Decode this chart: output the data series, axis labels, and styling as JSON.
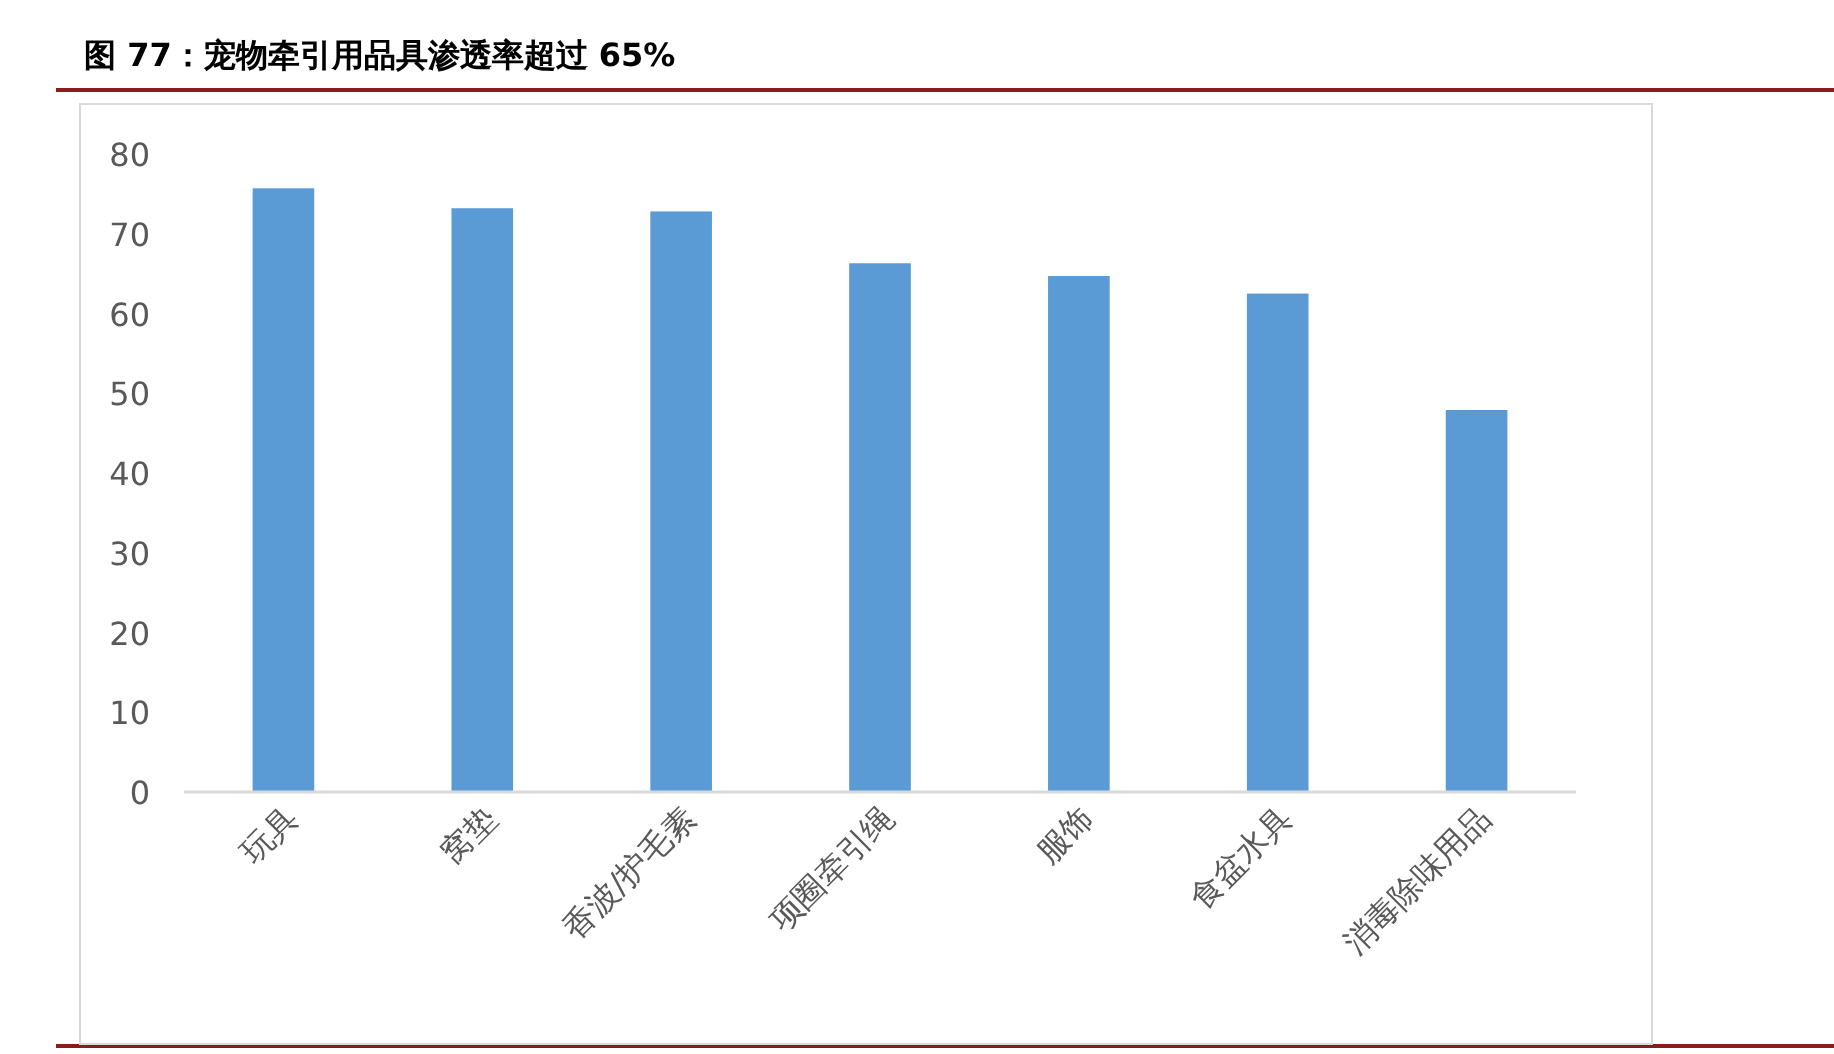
{
  "chart_data": {
    "type": "bar",
    "title": "图 77：宠物牵引用品具渗透率超过 65%",
    "categories": [
      "玩具",
      "窝垫",
      "香波/护毛素",
      "项圈牵引绳",
      "服饰",
      "食盆水具",
      "消毒除味用品"
    ],
    "values": [
      75.7,
      73.2,
      72.8,
      66.3,
      64.7,
      62.5,
      47.9
    ],
    "color": "#5b9bd5",
    "ylim": [
      0,
      80
    ],
    "yticks": [
      0,
      10,
      20,
      30,
      40,
      50,
      60,
      70,
      80
    ],
    "grid": false
  }
}
